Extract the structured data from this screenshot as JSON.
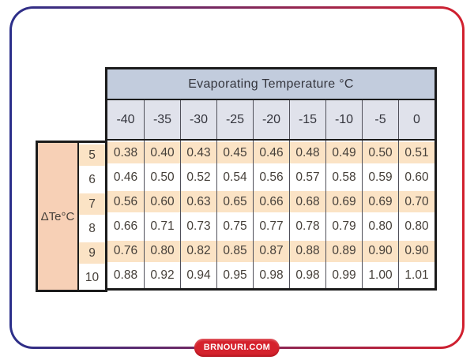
{
  "chart_data": {
    "type": "table",
    "title": "Evaporating Temperature °C",
    "row_axis_label": "ΔTe°C",
    "columns": [
      "-40",
      "-35",
      "-30",
      "-25",
      "-20",
      "-15",
      "-10",
      "-5",
      "0"
    ],
    "rows": [
      {
        "label": "5",
        "values": [
          "0.38",
          "0.40",
          "0.43",
          "0.45",
          "0.46",
          "0.48",
          "0.49",
          "0.50",
          "0.51"
        ]
      },
      {
        "label": "6",
        "values": [
          "0.46",
          "0.50",
          "0.52",
          "0.54",
          "0.56",
          "0.57",
          "0.58",
          "0.59",
          "0.60"
        ]
      },
      {
        "label": "7",
        "values": [
          "0.56",
          "0.60",
          "0.63",
          "0.65",
          "0.66",
          "0.68",
          "0.69",
          "0.69",
          "0.70"
        ]
      },
      {
        "label": "8",
        "values": [
          "0.66",
          "0.71",
          "0.73",
          "0.75",
          "0.77",
          "0.78",
          "0.79",
          "0.80",
          "0.80"
        ]
      },
      {
        "label": "9",
        "values": [
          "0.76",
          "0.80",
          "0.82",
          "0.85",
          "0.87",
          "0.88",
          "0.89",
          "0.90",
          "0.90"
        ]
      },
      {
        "label": "10",
        "values": [
          "0.88",
          "0.92",
          "0.94",
          "0.95",
          "0.98",
          "0.98",
          "0.99",
          "1.00",
          "1.01"
        ]
      }
    ],
    "layout_hints": {
      "striped_rows": [
        "5",
        "7",
        "9"
      ],
      "grid": true,
      "legend": "none"
    }
  },
  "footer": {
    "badge_text": "BRNOURI.COM"
  },
  "theme": {
    "frame-left": "#2b2f8a",
    "frame-right": "#d2202e",
    "header-bg": "#c2ccdd",
    "colheader-bg": "#e0e2eb",
    "stripe": "#fbe3c5",
    "label-bg": "#f7d0b6",
    "line-black": "#1b1b1b",
    "grid-line": "#50505a",
    "text": "#34353d",
    "num-text": "#46403a",
    "badge-bg": "#d5222d"
  }
}
